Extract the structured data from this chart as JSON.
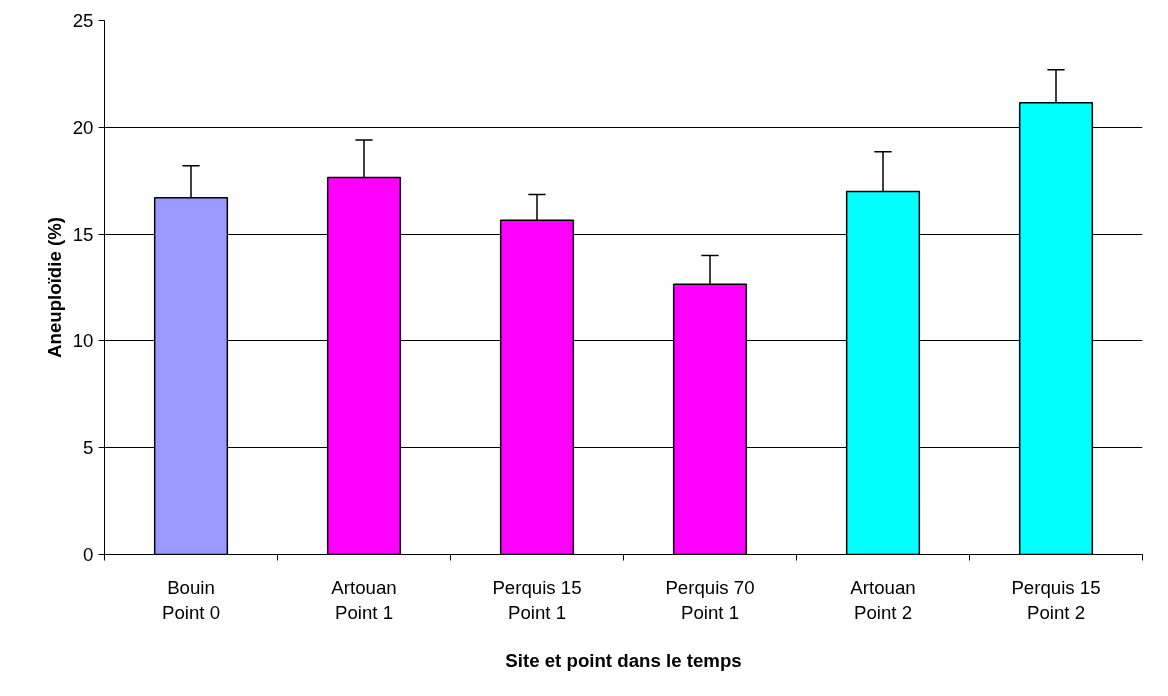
{
  "chart_data": {
    "type": "bar",
    "categories": [
      "Bouin\nPoint 0",
      "Artouan\nPoint 1",
      "Perquis 15\nPoint 1",
      "Perquis 70\nPoint 1",
      "Artouan\nPoint 2",
      "Perquis 15\nPoint 2"
    ],
    "values": [
      16.7,
      17.65,
      15.65,
      12.65,
      17.0,
      21.15
    ],
    "colors": [
      "#9999ff",
      "#ff00ff",
      "#ff00ff",
      "#ff00ff",
      "#00ffff",
      "#00ffff"
    ],
    "errors": [
      [
        16.7,
        18.2
      ],
      [
        17.65,
        19.4
      ],
      [
        15.65,
        16.85
      ],
      [
        12.65,
        14.0
      ],
      [
        17.0,
        18.85
      ],
      [
        21.15,
        22.7
      ]
    ],
    "ylim": [
      0,
      25
    ],
    "yticks": [
      0,
      5,
      10,
      15,
      20,
      25
    ],
    "xlabel": "Site et point dans le temps",
    "ylabel": "Aneuploïdie (%)",
    "grid": "y"
  }
}
